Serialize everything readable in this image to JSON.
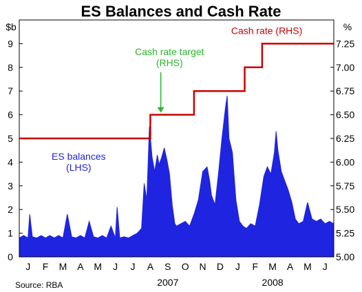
{
  "chart_data": {
    "type": "area",
    "title": "ES Balances and Cash Rate",
    "y_left_unit": "$b",
    "y_right_unit": "%",
    "ylim_left": [
      0,
      10
    ],
    "ylim_right": [
      5.0,
      7.5
    ],
    "y_left_ticks": [
      "0",
      "1",
      "2",
      "3",
      "4",
      "5",
      "6",
      "7",
      "8",
      "9"
    ],
    "y_right_ticks": [
      "5.00",
      "5.25",
      "5.50",
      "5.75",
      "6.00",
      "6.25",
      "6.50",
      "6.75",
      "7.00",
      "7.25"
    ],
    "x_month_labels": [
      "J",
      "F",
      "M",
      "A",
      "M",
      "J",
      "J",
      "A",
      "S",
      "O",
      "N",
      "D",
      "J",
      "F",
      "M",
      "A",
      "M",
      "J"
    ],
    "x_year_labels": [
      {
        "label": "2007",
        "month_center": 8.5
      },
      {
        "label": "2008",
        "month_center": 14.5
      }
    ],
    "x_range_months": [
      0,
      18
    ],
    "series": [
      {
        "name": "ES balances (LHS)",
        "axis": "left",
        "color": "#1f24e0",
        "points": [
          [
            0.0,
            0.8
          ],
          [
            0.25,
            0.9
          ],
          [
            0.5,
            0.8
          ],
          [
            0.6,
            1.8
          ],
          [
            0.75,
            0.85
          ],
          [
            1.0,
            0.8
          ],
          [
            1.25,
            0.9
          ],
          [
            1.5,
            0.8
          ],
          [
            1.75,
            0.9
          ],
          [
            2.0,
            0.8
          ],
          [
            2.25,
            0.9
          ],
          [
            2.5,
            0.8
          ],
          [
            2.75,
            1.8
          ],
          [
            3.0,
            0.85
          ],
          [
            3.25,
            0.8
          ],
          [
            3.5,
            0.9
          ],
          [
            3.75,
            0.8
          ],
          [
            4.0,
            1.5
          ],
          [
            4.25,
            0.85
          ],
          [
            4.5,
            0.8
          ],
          [
            4.75,
            0.9
          ],
          [
            5.0,
            0.8
          ],
          [
            5.25,
            1.3
          ],
          [
            5.5,
            0.8
          ],
          [
            5.6,
            2.1
          ],
          [
            5.75,
            0.8
          ],
          [
            6.0,
            0.85
          ],
          [
            6.25,
            0.8
          ],
          [
            6.5,
            0.9
          ],
          [
            6.75,
            1.0
          ],
          [
            7.0,
            1.2
          ],
          [
            7.15,
            3.1
          ],
          [
            7.3,
            2.4
          ],
          [
            7.45,
            5.5
          ],
          [
            7.6,
            4.2
          ],
          [
            7.75,
            3.6
          ],
          [
            7.9,
            4.3
          ],
          [
            8.0,
            3.9
          ],
          [
            8.15,
            4.2
          ],
          [
            8.3,
            4.6
          ],
          [
            8.45,
            4.1
          ],
          [
            8.6,
            3.5
          ],
          [
            8.75,
            2.2
          ],
          [
            8.9,
            1.4
          ],
          [
            9.0,
            1.3
          ],
          [
            9.25,
            1.4
          ],
          [
            9.5,
            1.5
          ],
          [
            9.75,
            1.3
          ],
          [
            10.0,
            1.8
          ],
          [
            10.25,
            2.4
          ],
          [
            10.5,
            3.6
          ],
          [
            10.75,
            3.8
          ],
          [
            10.9,
            3.2
          ],
          [
            11.0,
            2.6
          ],
          [
            11.2,
            2.2
          ],
          [
            11.4,
            3.5
          ],
          [
            11.6,
            5.0
          ],
          [
            11.8,
            6.3
          ],
          [
            11.9,
            6.8
          ],
          [
            12.0,
            5.0
          ],
          [
            12.2,
            4.4
          ],
          [
            12.4,
            2.4
          ],
          [
            12.6,
            1.5
          ],
          [
            12.8,
            1.3
          ],
          [
            13.0,
            1.2
          ],
          [
            13.25,
            1.4
          ],
          [
            13.5,
            1.3
          ],
          [
            13.75,
            2.2
          ],
          [
            14.0,
            3.4
          ],
          [
            14.2,
            3.8
          ],
          [
            14.4,
            3.5
          ],
          [
            14.6,
            4.4
          ],
          [
            14.7,
            5.3
          ],
          [
            14.8,
            4.5
          ],
          [
            15.0,
            3.6
          ],
          [
            15.2,
            3.2
          ],
          [
            15.4,
            2.8
          ],
          [
            15.6,
            2.3
          ],
          [
            15.8,
            1.6
          ],
          [
            16.0,
            1.4
          ],
          [
            16.25,
            1.5
          ],
          [
            16.5,
            2.3
          ],
          [
            16.75,
            1.6
          ],
          [
            17.0,
            1.5
          ],
          [
            17.25,
            1.6
          ],
          [
            17.5,
            1.4
          ],
          [
            17.75,
            1.5
          ],
          [
            18.0,
            1.4
          ]
        ]
      },
      {
        "name": "Cash rate (RHS)",
        "axis": "right",
        "color": "#c80000",
        "steps": [
          [
            0,
            6.25
          ],
          [
            7.5,
            6.5
          ],
          [
            10.0,
            6.75
          ],
          [
            12.9,
            7.0
          ],
          [
            13.9,
            7.25
          ],
          [
            18.0,
            7.25
          ]
        ]
      }
    ],
    "annotations": [
      {
        "text": [
          "Cash rate (RHS)"
        ],
        "color": "#c80000",
        "anchor": "end",
        "x_month": 16.2,
        "y_right": 7.35
      },
      {
        "text": [
          "Cash rate target",
          "(RHS)"
        ],
        "color": "#2ab52a",
        "anchor": "middle",
        "x_month": 8.6,
        "y_right": 7.13
      },
      {
        "text": [
          "ES balances",
          "(LHS)"
        ],
        "color": "#1f24e0",
        "anchor": "middle",
        "x_month": 3.4,
        "y_left": 4.1
      }
    ],
    "arrow": {
      "color": "#2ab52a",
      "x_month": 8.1,
      "from_y_right": 6.95,
      "to_y_right": 6.5
    },
    "source": "Source: RBA"
  }
}
